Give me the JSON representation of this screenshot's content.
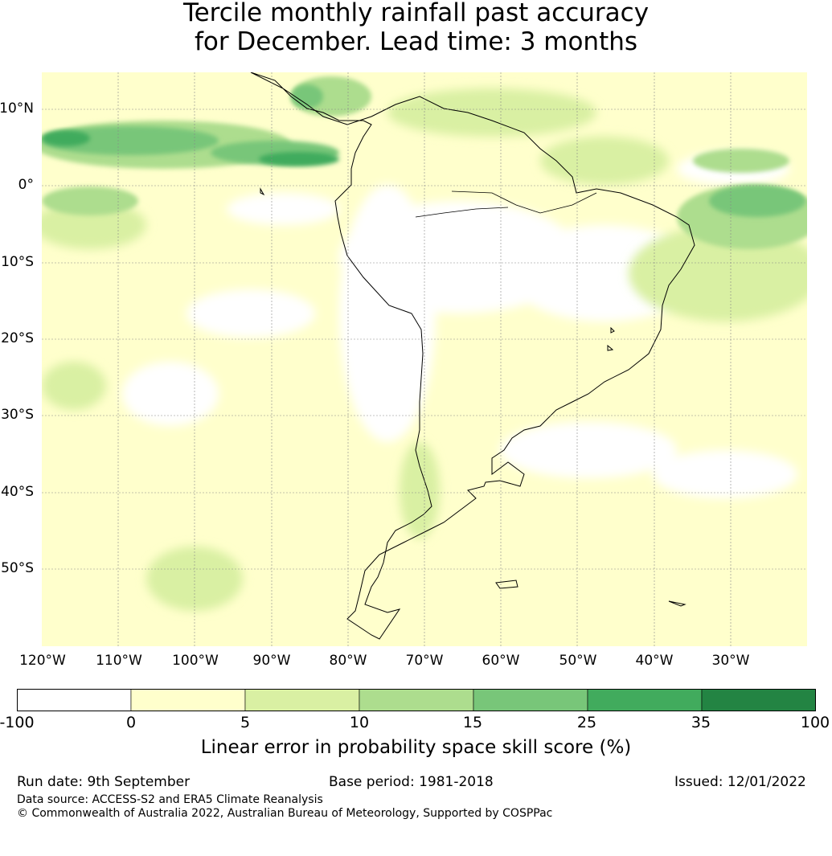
{
  "title": {
    "line1": "Tercile monthly rainfall past accuracy",
    "line2": "for December. Lead time: 3 months"
  },
  "map": {
    "lat_labels": [
      "10°N",
      "0°",
      "10°S",
      "20°S",
      "30°S",
      "40°S",
      "50°S"
    ],
    "lon_labels": [
      "120°W",
      "110°W",
      "100°W",
      "90°W",
      "80°W",
      "70°W",
      "60°W",
      "50°W",
      "40°W",
      "30°W"
    ],
    "extent": {
      "lon_min": -120,
      "lon_max": -20,
      "lat_min": -60,
      "lat_max": 15
    },
    "gridlines": true
  },
  "legend": {
    "ticks": [
      "-100",
      "0",
      "5",
      "10",
      "15",
      "25",
      "35",
      "100"
    ],
    "colors": [
      "#ffffff",
      "#ffffcc",
      "#d9f0a3",
      "#addd8e",
      "#78c679",
      "#41ab5d",
      "#238443"
    ],
    "label": "Linear error in probability space skill score (%)"
  },
  "footer": {
    "run_date": "Run date: 9th September",
    "base_period": "Base period: 1981-2018",
    "issued": "Issued: 12/01/2022",
    "data_source": "Data source: ACCESS-S2 and ERA5 Climate Reanalysis",
    "copyright": "© Commonwealth of Australia 2022, Australian Bureau of Meteorology, Supported by COSPPac"
  }
}
